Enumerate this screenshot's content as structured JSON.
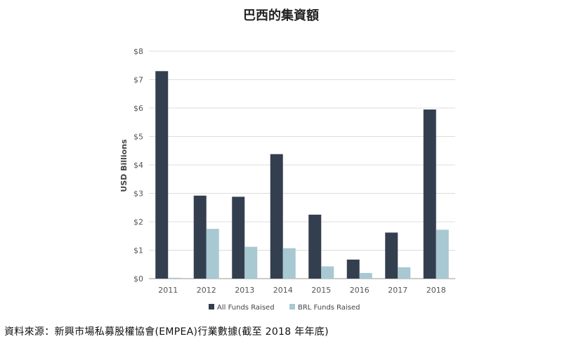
{
  "title": "巴西的集資額",
  "source": "資料來源：新興市場私募股權協會(EMPEA)行業數據(截至 2018 年年底)",
  "chart_data": {
    "type": "bar",
    "categories": [
      "2011",
      "2012",
      "2013",
      "2014",
      "2015",
      "2016",
      "2017",
      "2018"
    ],
    "series": [
      {
        "name": "All Funds Raised",
        "values": [
          7.3,
          2.92,
          2.88,
          4.38,
          2.25,
          0.67,
          1.62,
          5.95
        ],
        "color": "#333f4f"
      },
      {
        "name": "BRL Funds Raised",
        "values": [
          0.03,
          1.75,
          1.12,
          1.07,
          0.43,
          0.2,
          0.4,
          1.72
        ],
        "color": "#a8c8d2"
      }
    ],
    "ylabel": "USD Billions",
    "ylim": [
      0,
      8
    ],
    "yticks": [
      "$0",
      "$1",
      "$2",
      "$3",
      "$4",
      "$5",
      "$6",
      "$7",
      "$8"
    ],
    "grid": true,
    "legend": "bottom"
  }
}
